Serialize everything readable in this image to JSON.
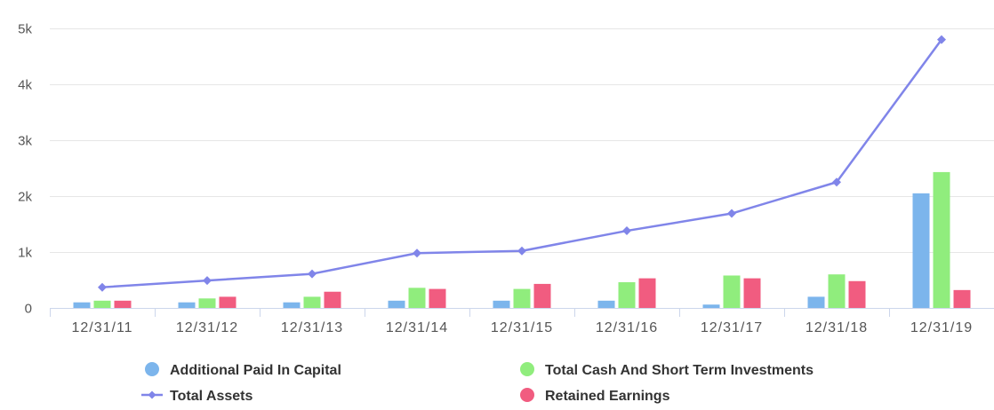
{
  "chart_data": {
    "type": "bar",
    "categories": [
      "12/31/11",
      "12/31/12",
      "12/31/13",
      "12/31/14",
      "12/31/15",
      "12/31/16",
      "12/31/17",
      "12/31/18",
      "12/31/19"
    ],
    "series": [
      {
        "name": "Additional Paid In Capital",
        "type": "bar",
        "color": "#7cb5ec",
        "values": [
          100,
          100,
          100,
          130,
          130,
          130,
          60,
          200,
          2050
        ]
      },
      {
        "name": "Total Cash And Short Term Investments",
        "type": "bar",
        "color": "#90ed7d",
        "values": [
          130,
          170,
          200,
          360,
          340,
          460,
          580,
          600,
          2430
        ]
      },
      {
        "name": "Retained Earnings",
        "type": "bar",
        "color": "#f15c80",
        "values": [
          130,
          200,
          290,
          340,
          430,
          530,
          530,
          480,
          320
        ]
      },
      {
        "name": "Total Assets",
        "type": "line",
        "color": "#8085e9",
        "values": [
          370,
          490,
          610,
          980,
          1020,
          1380,
          1690,
          2250,
          4800
        ]
      }
    ],
    "y_axis": {
      "min": 0,
      "max": 5000,
      "ticks": [
        0,
        1000,
        2000,
        3000,
        4000,
        5000
      ],
      "tick_labels": [
        "0",
        "1k",
        "2k",
        "3k",
        "4k",
        "5k"
      ]
    },
    "title": "",
    "xlabel": "",
    "ylabel": "",
    "grid": true,
    "legend": {
      "placement": "bottom",
      "items": [
        {
          "name": "Additional Paid In Capital",
          "symbol": "circle",
          "color": "#7cb5ec"
        },
        {
          "name": "Total Cash And Short Term Investments",
          "symbol": "circle",
          "color": "#90ed7d"
        },
        {
          "name": "Total Assets",
          "symbol": "line-diamond",
          "color": "#8085e9"
        },
        {
          "name": "Retained Earnings",
          "symbol": "circle",
          "color": "#f15c80"
        }
      ]
    }
  }
}
